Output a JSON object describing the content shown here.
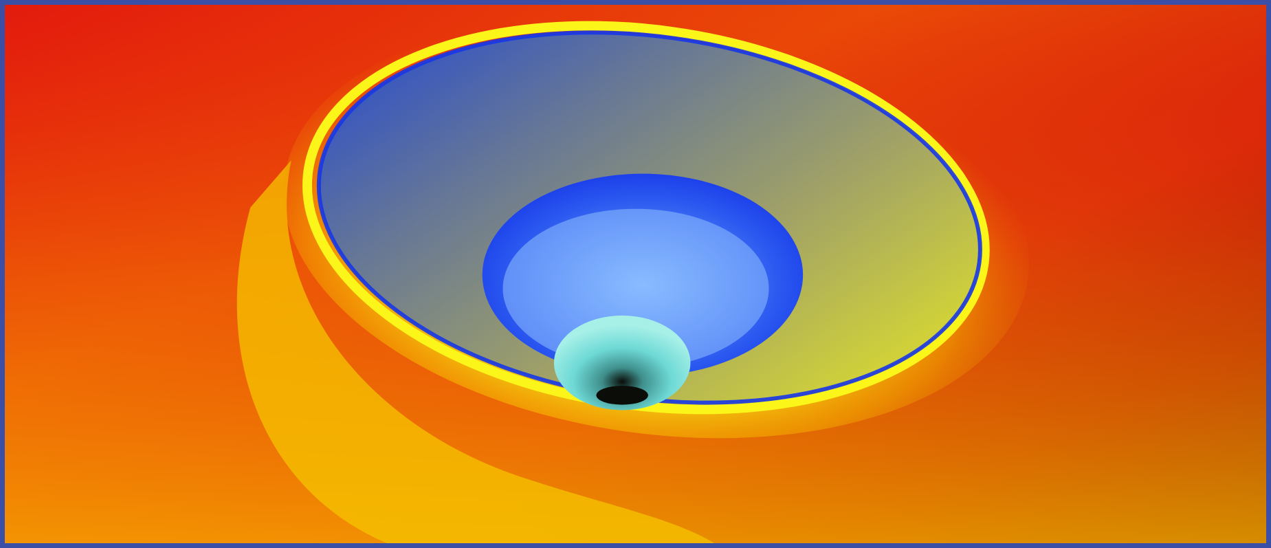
{
  "image": {
    "subject": "colorful-funnel-vortex-render",
    "frame_color": "#3c4fa6",
    "palette": {
      "red": "#e31b0d",
      "deep_red": "#8a0000",
      "black": "#1a0000",
      "orange": "#f07a00",
      "yellow": "#f4ec18",
      "olive": "#9fa068",
      "slate": "#62749a",
      "blue": "#1636e8",
      "light_blue": "#7fb7ff",
      "cyan": "#6ed9d5",
      "throat": "#0a0d08"
    }
  }
}
